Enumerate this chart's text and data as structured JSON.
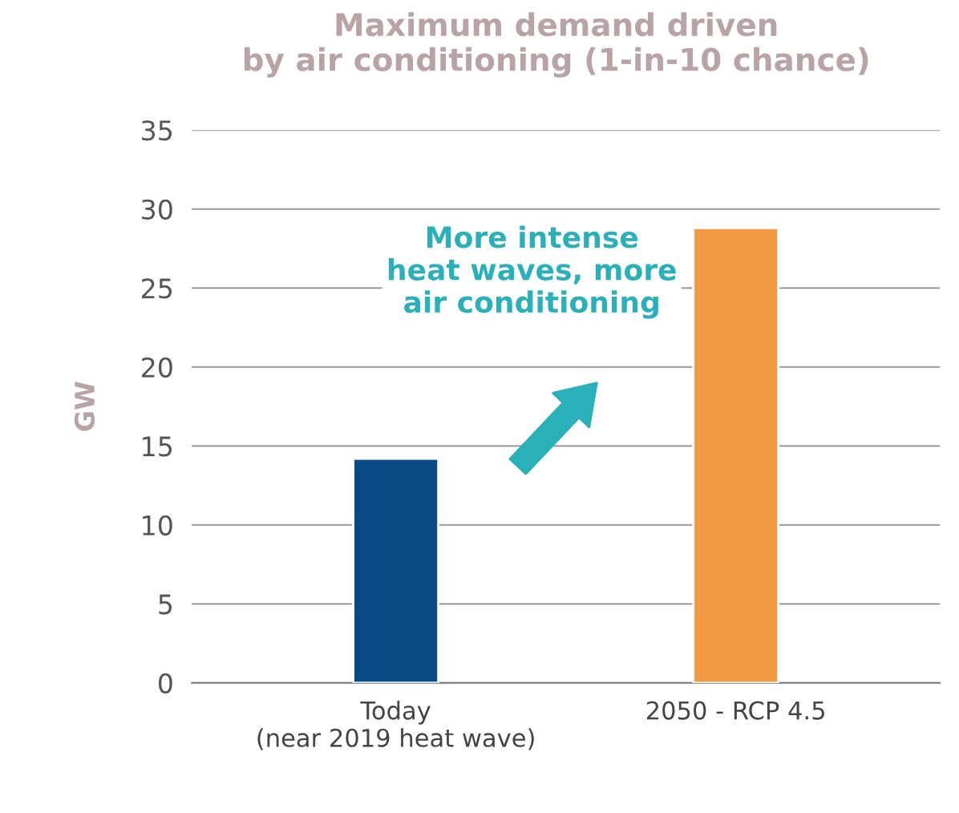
{
  "chart_data": {
    "type": "bar",
    "title": "Maximum demand driven\nby air conditioning (1-in-10 chance)",
    "ylabel": "GW",
    "categories": [
      "Today\n(near 2019 heat wave)",
      "2050 - RCP 4.5"
    ],
    "values": [
      14.2,
      28.8
    ],
    "colors": [
      "#0a4a86",
      "#f39a45"
    ],
    "ylim": [
      0,
      35
    ],
    "yticks": [
      0,
      5,
      10,
      15,
      20,
      25,
      30,
      35
    ],
    "grid": "y",
    "annotations": [
      "More intense\nheat waves, more\nair conditioning"
    ]
  }
}
